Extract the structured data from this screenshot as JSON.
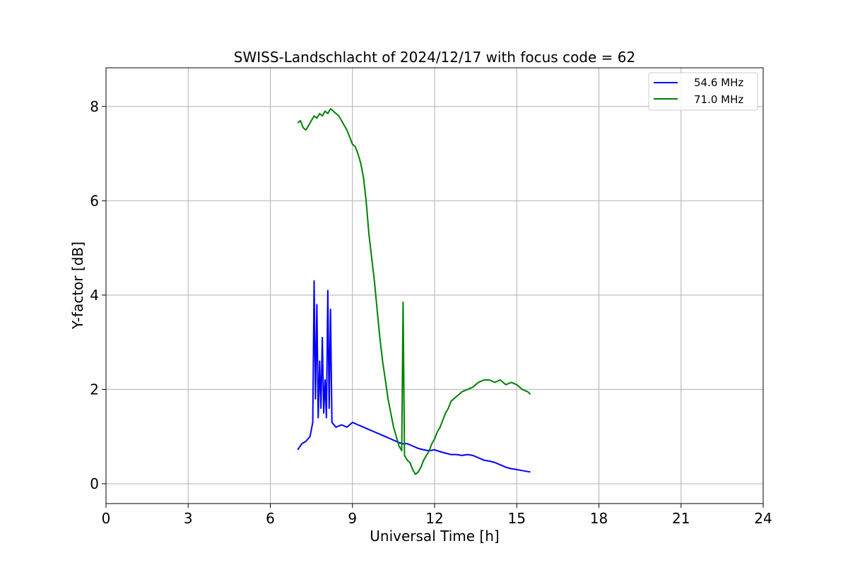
{
  "chart_data": {
    "type": "line",
    "title": "SWISS-Landschlacht of 2024/12/17 with focus code = 62",
    "xlabel": "Universal Time [h]",
    "ylabel": "Y-factor [dB]",
    "xlim": [
      0,
      24
    ],
    "ylim": [
      -0.42,
      8.82
    ],
    "xticks": [
      0,
      3,
      6,
      9,
      12,
      15,
      18,
      21,
      24
    ],
    "yticks": [
      0,
      2,
      4,
      6,
      8
    ],
    "grid": true,
    "legend_position": "top-right",
    "series": [
      {
        "name": "54.6 MHz",
        "color": "#0000ff",
        "x": [
          7.0,
          7.15,
          7.3,
          7.45,
          7.55,
          7.6,
          7.65,
          7.7,
          7.75,
          7.8,
          7.85,
          7.9,
          7.95,
          8.0,
          8.05,
          8.1,
          8.15,
          8.2,
          8.25,
          8.4,
          8.6,
          8.8,
          9.0,
          9.2,
          9.4,
          9.6,
          9.8,
          10.0,
          10.2,
          10.4,
          10.6,
          10.8,
          11.0,
          11.2,
          11.4,
          11.6,
          11.8,
          12.0,
          12.2,
          12.4,
          12.6,
          12.8,
          13.0,
          13.2,
          13.4,
          13.6,
          13.8,
          14.0,
          14.2,
          14.4,
          14.6,
          14.8,
          15.0,
          15.2,
          15.5
        ],
        "y": [
          0.72,
          0.85,
          0.9,
          1.0,
          1.3,
          4.3,
          1.8,
          3.8,
          1.4,
          2.6,
          1.6,
          3.1,
          1.5,
          2.2,
          1.4,
          4.1,
          1.6,
          3.7,
          1.3,
          1.2,
          1.25,
          1.2,
          1.3,
          1.25,
          1.2,
          1.15,
          1.1,
          1.05,
          1.0,
          0.95,
          0.9,
          0.85,
          0.85,
          0.8,
          0.75,
          0.72,
          0.7,
          0.72,
          0.68,
          0.65,
          0.62,
          0.62,
          0.6,
          0.62,
          0.6,
          0.55,
          0.5,
          0.48,
          0.45,
          0.4,
          0.35,
          0.32,
          0.3,
          0.28,
          0.25
        ]
      },
      {
        "name": "71.0 MHz",
        "color": "#008000",
        "x": [
          7.0,
          7.1,
          7.2,
          7.3,
          7.4,
          7.5,
          7.6,
          7.7,
          7.8,
          7.9,
          8.0,
          8.1,
          8.2,
          8.3,
          8.4,
          8.5,
          8.6,
          8.7,
          8.8,
          8.9,
          9.0,
          9.1,
          9.2,
          9.3,
          9.4,
          9.5,
          9.6,
          9.7,
          9.8,
          9.9,
          10.0,
          10.1,
          10.2,
          10.3,
          10.4,
          10.5,
          10.6,
          10.7,
          10.8,
          10.85,
          10.9,
          11.0,
          11.1,
          11.2,
          11.3,
          11.4,
          11.5,
          11.6,
          11.7,
          11.8,
          11.9,
          12.0,
          12.1,
          12.2,
          12.3,
          12.4,
          12.5,
          12.6,
          12.7,
          12.8,
          12.9,
          13.0,
          13.2,
          13.4,
          13.5,
          13.6,
          13.8,
          14.0,
          14.2,
          14.4,
          14.6,
          14.8,
          15.0,
          15.2,
          15.4,
          15.5
        ],
        "y": [
          7.65,
          7.7,
          7.55,
          7.5,
          7.6,
          7.7,
          7.8,
          7.75,
          7.85,
          7.8,
          7.9,
          7.85,
          7.95,
          7.9,
          7.85,
          7.8,
          7.7,
          7.6,
          7.5,
          7.35,
          7.2,
          7.15,
          7.0,
          6.8,
          6.5,
          6.0,
          5.3,
          4.8,
          4.3,
          3.7,
          3.1,
          2.6,
          2.2,
          1.8,
          1.5,
          1.2,
          1.0,
          0.8,
          0.7,
          3.85,
          0.6,
          0.5,
          0.45,
          0.3,
          0.2,
          0.25,
          0.35,
          0.5,
          0.6,
          0.7,
          0.85,
          0.95,
          1.1,
          1.2,
          1.35,
          1.5,
          1.6,
          1.75,
          1.8,
          1.85,
          1.9,
          1.95,
          2.0,
          2.05,
          2.1,
          2.15,
          2.2,
          2.2,
          2.15,
          2.2,
          2.1,
          2.15,
          2.1,
          2.0,
          1.95,
          1.9
        ]
      }
    ]
  }
}
